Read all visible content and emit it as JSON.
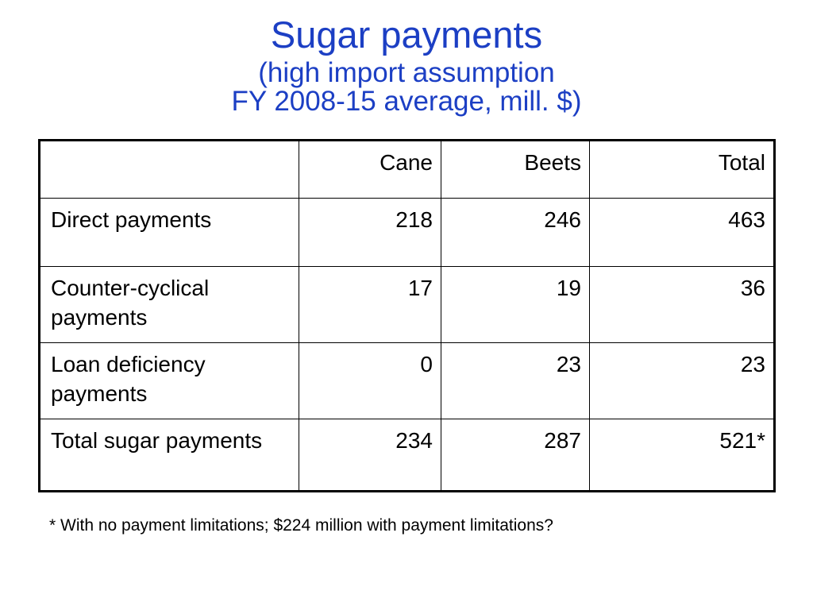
{
  "slide": {
    "title": "Sugar payments",
    "subtitle_line1": "(high import assumption",
    "subtitle_line2": "FY 2008-15 average, mill. $)",
    "title_color": "#1c3fc4"
  },
  "table": {
    "headers": [
      "",
      "Cane",
      "Beets",
      "Total"
    ],
    "rows": [
      {
        "label": "Direct payments",
        "cane": "218",
        "beets": "246",
        "total": "463"
      },
      {
        "label": "Counter-cyclical payments",
        "cane": "17",
        "beets": "19",
        "total": "36"
      },
      {
        "label": "Loan deficiency payments",
        "cane": "0",
        "beets": "23",
        "total": "23"
      },
      {
        "label": "Total sugar payments",
        "cane": "234",
        "beets": "287",
        "total": "521*"
      }
    ]
  },
  "footnote": "* With no payment limitations; $224 million with payment limitations?"
}
